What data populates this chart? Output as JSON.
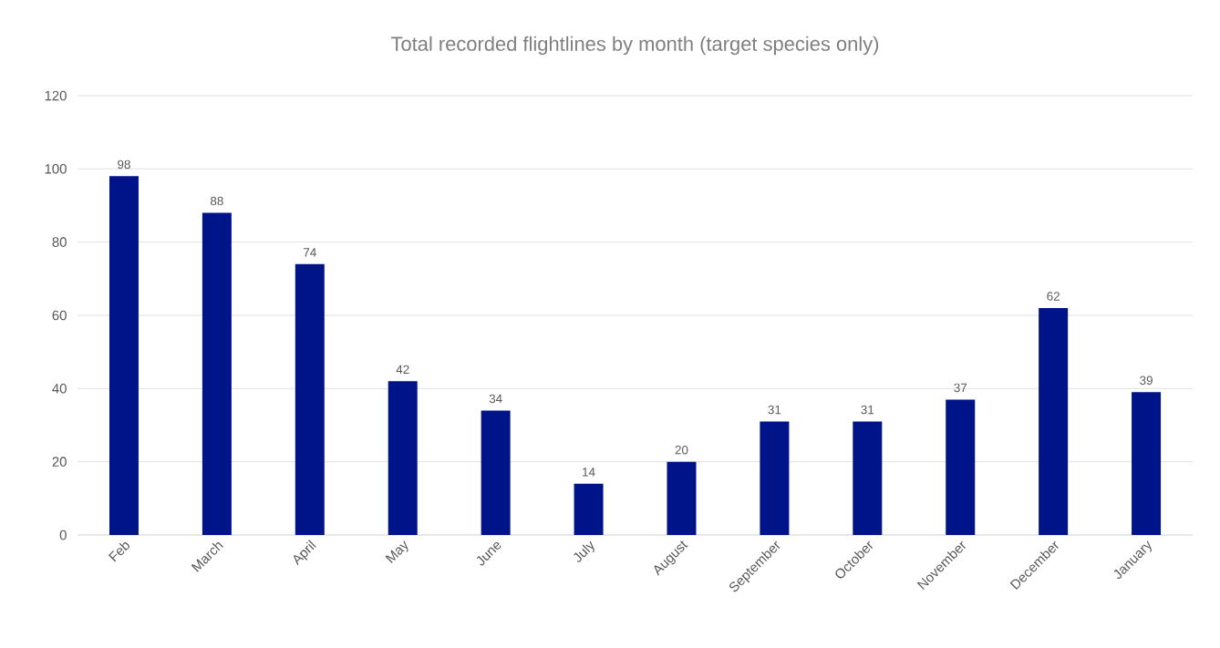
{
  "chart_data": {
    "type": "bar",
    "title": "Total recorded flightlines by month (target species only)",
    "categories": [
      "Feb",
      "March",
      "April",
      "May",
      "June",
      "July",
      "August",
      "September",
      "October",
      "November",
      "December",
      "January"
    ],
    "values": [
      98,
      88,
      74,
      42,
      34,
      14,
      20,
      31,
      31,
      37,
      62,
      39
    ],
    "color": "#001489",
    "ylim": [
      0,
      120
    ],
    "yticks": [
      0,
      20,
      40,
      60,
      80,
      100,
      120
    ],
    "grid": "y",
    "data_labels": true
  }
}
